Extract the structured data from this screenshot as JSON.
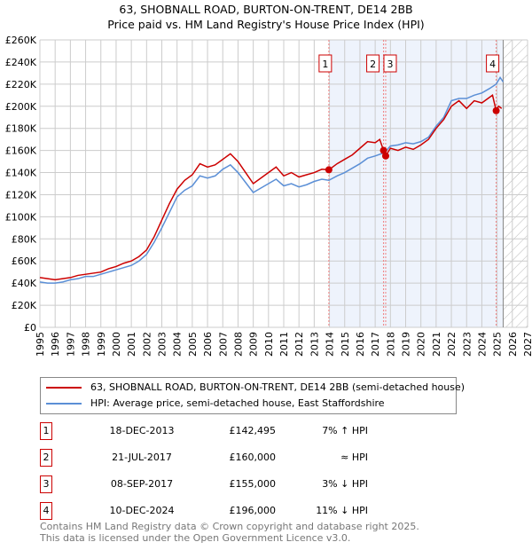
{
  "chart_data": {
    "type": "line",
    "title": "63, SHOBNALL ROAD, BURTON-ON-TRENT, DE14 2BB",
    "subtitle": "Price paid vs. HM Land Registry's House Price Index (HPI)",
    "xlim": [
      1995,
      2027
    ],
    "ylim": [
      0,
      260000
    ],
    "yticks": [
      0,
      20000,
      40000,
      60000,
      80000,
      100000,
      120000,
      140000,
      160000,
      180000,
      200000,
      220000,
      240000,
      260000
    ],
    "ytick_labels": [
      "£0",
      "£20K",
      "£40K",
      "£60K",
      "£80K",
      "£100K",
      "£120K",
      "£140K",
      "£160K",
      "£180K",
      "£200K",
      "£220K",
      "£240K",
      "£260K"
    ],
    "xticks": [
      1995,
      1996,
      1997,
      1998,
      1999,
      2000,
      2001,
      2002,
      2003,
      2004,
      2005,
      2006,
      2007,
      2008,
      2009,
      2010,
      2011,
      2012,
      2013,
      2014,
      2015,
      2016,
      2017,
      2018,
      2019,
      2020,
      2021,
      2022,
      2023,
      2024,
      2025,
      2026,
      2027
    ],
    "grid": true,
    "shaded_range": [
      2013.96,
      2025.4
    ],
    "hatched_from": 2025.4,
    "series": [
      {
        "name": "63, SHOBNALL ROAD, BURTON-ON-TRENT, DE14 2BB (semi-detached house)",
        "color": "#cc0000",
        "points": [
          [
            1995,
            45000
          ],
          [
            1995.5,
            44000
          ],
          [
            1996,
            43000
          ],
          [
            1996.5,
            44000
          ],
          [
            1997,
            45000
          ],
          [
            1997.5,
            47000
          ],
          [
            1998,
            48000
          ],
          [
            1998.5,
            49000
          ],
          [
            1999,
            50000
          ],
          [
            1999.5,
            53000
          ],
          [
            2000,
            55000
          ],
          [
            2000.5,
            58000
          ],
          [
            2001,
            60000
          ],
          [
            2001.5,
            64000
          ],
          [
            2002,
            70000
          ],
          [
            2002.5,
            82000
          ],
          [
            2003,
            97000
          ],
          [
            2003.5,
            112000
          ],
          [
            2004,
            125000
          ],
          [
            2004.5,
            133000
          ],
          [
            2005,
            138000
          ],
          [
            2005.5,
            148000
          ],
          [
            2006,
            145000
          ],
          [
            2006.5,
            147000
          ],
          [
            2007,
            152000
          ],
          [
            2007.5,
            157000
          ],
          [
            2008,
            150000
          ],
          [
            2008.5,
            140000
          ],
          [
            2009,
            130000
          ],
          [
            2009.5,
            135000
          ],
          [
            2010,
            140000
          ],
          [
            2010.5,
            145000
          ],
          [
            2011,
            137000
          ],
          [
            2011.5,
            140000
          ],
          [
            2012,
            136000
          ],
          [
            2012.5,
            138000
          ],
          [
            2013,
            140000
          ],
          [
            2013.5,
            143000
          ],
          [
            2013.96,
            142495
          ],
          [
            2014.5,
            148000
          ],
          [
            2015,
            152000
          ],
          [
            2015.5,
            156000
          ],
          [
            2016,
            162000
          ],
          [
            2016.5,
            168000
          ],
          [
            2017,
            167000
          ],
          [
            2017.3,
            170000
          ],
          [
            2017.55,
            160000
          ],
          [
            2017.69,
            155000
          ],
          [
            2018,
            162000
          ],
          [
            2018.5,
            160000
          ],
          [
            2019,
            163000
          ],
          [
            2019.5,
            161000
          ],
          [
            2020,
            165000
          ],
          [
            2020.5,
            170000
          ],
          [
            2021,
            180000
          ],
          [
            2021.5,
            188000
          ],
          [
            2022,
            200000
          ],
          [
            2022.5,
            205000
          ],
          [
            2023,
            198000
          ],
          [
            2023.5,
            205000
          ],
          [
            2024,
            203000
          ],
          [
            2024.7,
            210000
          ],
          [
            2024.94,
            196000
          ],
          [
            2025.1,
            200000
          ],
          [
            2025.3,
            198000
          ]
        ]
      },
      {
        "name": "HPI: Average price, semi-detached house, East Staffordshire",
        "color": "#5b8fd6",
        "points": [
          [
            1995,
            41000
          ],
          [
            1995.5,
            40000
          ],
          [
            1996,
            40000
          ],
          [
            1996.5,
            41000
          ],
          [
            1997,
            43000
          ],
          [
            1997.5,
            44000
          ],
          [
            1998,
            46000
          ],
          [
            1998.5,
            46000
          ],
          [
            1999,
            48000
          ],
          [
            1999.5,
            50000
          ],
          [
            2000,
            52000
          ],
          [
            2000.5,
            54000
          ],
          [
            2001,
            56000
          ],
          [
            2001.5,
            60000
          ],
          [
            2002,
            66000
          ],
          [
            2002.5,
            77000
          ],
          [
            2003,
            90000
          ],
          [
            2003.5,
            104000
          ],
          [
            2004,
            118000
          ],
          [
            2004.5,
            124000
          ],
          [
            2005,
            128000
          ],
          [
            2005.5,
            137000
          ],
          [
            2006,
            135000
          ],
          [
            2006.5,
            137000
          ],
          [
            2007,
            143000
          ],
          [
            2007.5,
            147000
          ],
          [
            2008,
            140000
          ],
          [
            2008.5,
            131000
          ],
          [
            2009,
            122000
          ],
          [
            2009.5,
            126000
          ],
          [
            2010,
            130000
          ],
          [
            2010.5,
            134000
          ],
          [
            2011,
            128000
          ],
          [
            2011.5,
            130000
          ],
          [
            2012,
            127000
          ],
          [
            2012.5,
            129000
          ],
          [
            2013,
            132000
          ],
          [
            2013.5,
            134000
          ],
          [
            2013.96,
            133000
          ],
          [
            2014.5,
            137000
          ],
          [
            2015,
            140000
          ],
          [
            2015.5,
            144000
          ],
          [
            2016,
            148000
          ],
          [
            2016.5,
            153000
          ],
          [
            2017,
            155000
          ],
          [
            2017.6,
            158000
          ],
          [
            2018,
            164000
          ],
          [
            2018.5,
            165000
          ],
          [
            2019,
            167000
          ],
          [
            2019.5,
            166000
          ],
          [
            2020,
            168000
          ],
          [
            2020.5,
            172000
          ],
          [
            2021,
            182000
          ],
          [
            2021.5,
            190000
          ],
          [
            2022,
            205000
          ],
          [
            2022.5,
            207000
          ],
          [
            2023,
            207000
          ],
          [
            2023.5,
            210000
          ],
          [
            2024,
            212000
          ],
          [
            2024.5,
            216000
          ],
          [
            2024.94,
            220000
          ],
          [
            2025.2,
            226000
          ],
          [
            2025.4,
            222000
          ]
        ]
      }
    ],
    "sales": [
      {
        "id": "1",
        "date": "18-DEC-2013",
        "x": 2013.96,
        "price": 142495,
        "price_label": "£142,495",
        "hpi": "7% ↑ HPI"
      },
      {
        "id": "2",
        "date": "21-JUL-2017",
        "x": 2017.55,
        "price": 160000,
        "price_label": "£160,000",
        "hpi": "≈ HPI"
      },
      {
        "id": "3",
        "date": "08-SEP-2017",
        "x": 2017.69,
        "price": 155000,
        "price_label": "£155,000",
        "hpi": "3% ↓ HPI"
      },
      {
        "id": "4",
        "date": "10-DEC-2024",
        "x": 2024.94,
        "price": 196000,
        "price_label": "£196,000",
        "hpi": "11% ↓ HPI"
      }
    ],
    "footer_line1": "Contains HM Land Registry data © Crown copyright and database right 2025.",
    "footer_line2": "This data is licensed under the Open Government Licence v3.0."
  }
}
